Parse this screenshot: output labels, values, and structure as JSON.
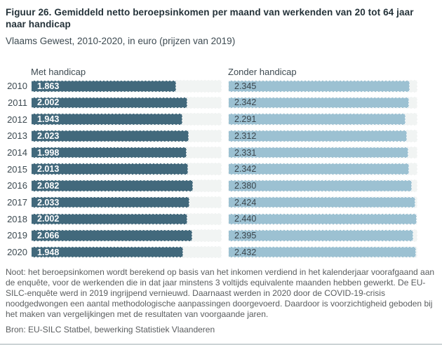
{
  "title": "Figuur 26. Gemiddeld netto beroepsinkomen per maand van werkenden van 20 tot 64 jaar naar handicap",
  "subtitle": "Vlaams Gewest, 2010-2020, in euro (prijzen van 2019)",
  "note": "Noot: het beroepsinkomen wordt berekend op basis van het inkomen verdiend in het kalenderjaar voorafgaand aan de enquête, voor de werkenden die in dat jaar minstens 3 voltijds equivalente maanden hebben gewerkt. De EU-SILC-enquête werd in 2019 ingrijpend vernieuwd. Daarnaast werden in 2020 door de COVID-19-crisis noodgedwongen een aantal methodologische aanpassingen doorgevoerd. Daardoor is voorzichtigheid geboden bij het maken van vergelijkingen met de resultaten van voorgaande jaren.",
  "source": "Bron: EU-SILC Statbel, bewerking Statistiek Vlaanderen",
  "colors": {
    "met_handicap_bar": "#42697c",
    "zonder_handicap_bar": "#9cc1d2",
    "bar_track": "#f1f4f3",
    "title_text": "#243239",
    "note_text": "#5a5d5f"
  },
  "chart_data": {
    "type": "bar",
    "orientation": "horizontal",
    "title": "Gemiddeld netto beroepsinkomen per maand van werkenden van 20 tot 64 jaar naar handicap",
    "unit": "euro (prijzen van 2019)",
    "categories": [
      "2010",
      "2011",
      "2012",
      "2013",
      "2014",
      "2015",
      "2016",
      "2017",
      "2018",
      "2019",
      "2020"
    ],
    "series": [
      {
        "name": "Met handicap",
        "values": [
          1863,
          2002,
          1943,
          2023,
          1998,
          2013,
          2082,
          2033,
          2002,
          2066,
          1948
        ],
        "labels": [
          "1.863",
          "2.002",
          "1.943",
          "2.023",
          "1.998",
          "2.013",
          "2.082",
          "2.033",
          "2.002",
          "2.066",
          "1.948"
        ],
        "color": "#42697c"
      },
      {
        "name": "Zonder handicap",
        "values": [
          2345,
          2342,
          2291,
          2312,
          2331,
          2342,
          2380,
          2424,
          2440,
          2395,
          2432
        ],
        "labels": [
          "2.345",
          "2.342",
          "2.291",
          "2.312",
          "2.331",
          "2.342",
          "2.380",
          "2.424",
          "2.440",
          "2.395",
          "2.432"
        ],
        "color": "#9cc1d2"
      }
    ],
    "value_axis": {
      "min": 0,
      "max": 2440
    },
    "grid": false,
    "legend_position": "column-headers",
    "data_labels": "inside-start"
  }
}
